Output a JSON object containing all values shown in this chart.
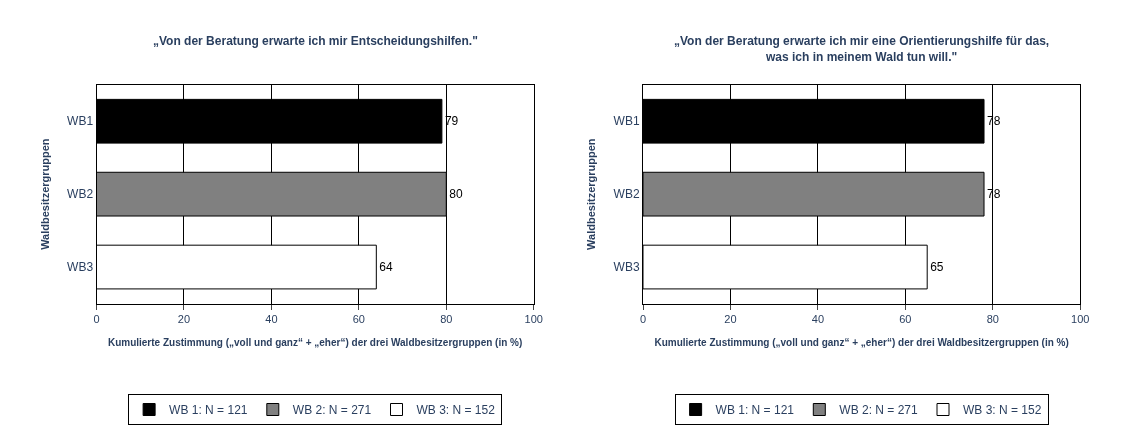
{
  "chart_data": [
    {
      "type": "bar",
      "orientation": "horizontal",
      "title": "„Von der Beratung erwarte ich mir Entscheidungshilfen.\"",
      "xlabel": "Kumulierte Zustimmung („voll und ganz“ + „eher“) der drei Waldbesitzergruppen (in %)",
      "ylabel": "Waldbesitzergruppen",
      "categories": [
        "WB1",
        "WB2",
        "WB3"
      ],
      "series": [
        {
          "name": "WB 1: N = 121",
          "color": "#000000",
          "values": [
            79,
            null,
            null
          ]
        },
        {
          "name": "WB 2: N = 271",
          "color": "#808080",
          "values": [
            null,
            80,
            null
          ]
        },
        {
          "name": "WB 3: N = 152",
          "color": "#ffffff",
          "values": [
            null,
            null,
            64
          ]
        }
      ],
      "xlim": [
        0,
        100
      ],
      "xticks": [
        0,
        20,
        40,
        60,
        80,
        100
      ],
      "grid": "x",
      "legend": "bottom",
      "data_labels": true
    },
    {
      "type": "bar",
      "orientation": "horizontal",
      "title": "„Von der Beratung erwarte ich mir eine Orientierungshilfe für das,\nwas ich in meinem Wald tun will.\"",
      "xlabel": "Kumulierte Zustimmung („voll und ganz“ + „eher“) der drei Waldbesitzergruppen (in %)",
      "ylabel": "Waldbesitzergruppen",
      "categories": [
        "WB1",
        "WB2",
        "WB3"
      ],
      "series": [
        {
          "name": "WB 1: N = 121",
          "color": "#000000",
          "values": [
            78,
            null,
            null
          ]
        },
        {
          "name": "WB 2: N = 271",
          "color": "#808080",
          "values": [
            null,
            78,
            null
          ]
        },
        {
          "name": "WB 3: N = 152",
          "color": "#ffffff",
          "values": [
            null,
            null,
            65
          ]
        }
      ],
      "xlim": [
        0,
        100
      ],
      "xticks": [
        0,
        20,
        40,
        60,
        80,
        100
      ],
      "grid": "x",
      "legend": "bottom",
      "data_labels": true
    }
  ]
}
